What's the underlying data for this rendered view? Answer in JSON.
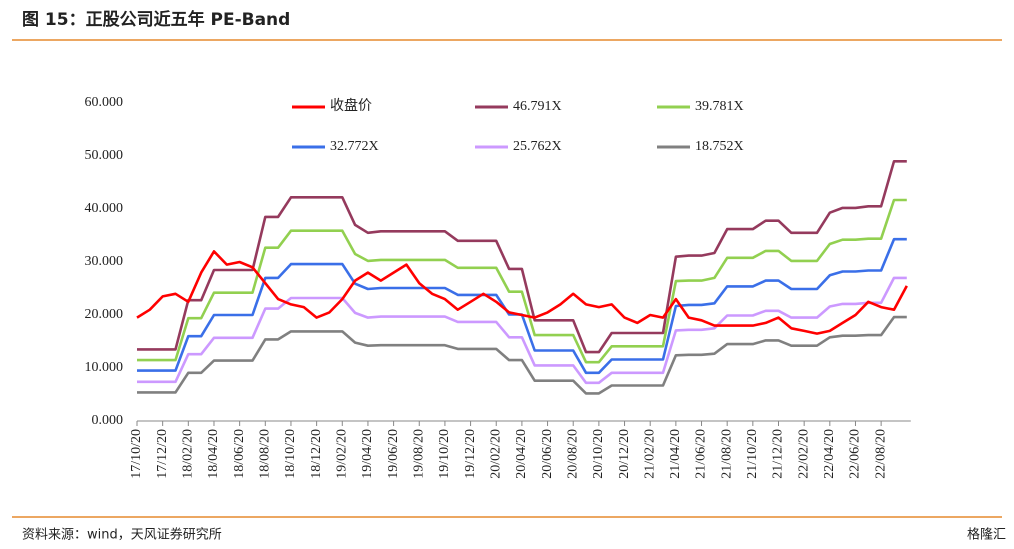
{
  "header": {
    "title": "图 15：正股公司近五年 PE-Band"
  },
  "chart_data": {
    "type": "line",
    "categories": [
      "17/10/20",
      null,
      "17/12/20",
      null,
      "18/02/20",
      null,
      "18/04/20",
      null,
      "18/06/20",
      null,
      "18/08/20",
      null,
      "18/10/20",
      null,
      "18/12/20",
      null,
      "19/02/20",
      null,
      "19/04/20",
      null,
      "19/06/20",
      null,
      "19/08/20",
      null,
      "19/10/20",
      null,
      "19/12/20",
      null,
      "20/02/20",
      null,
      "20/04/20",
      null,
      "20/06/20",
      null,
      "20/08/20",
      null,
      "20/10/20",
      null,
      "20/12/20",
      null,
      "21/02/20",
      null,
      "21/04/20",
      null,
      "21/06/20",
      null,
      "21/08/20",
      null,
      "21/10/20",
      null,
      "21/12/20",
      null,
      "22/02/20",
      null,
      "22/04/20",
      null,
      "22/06/20",
      null,
      "22/08/20",
      null,
      null
    ],
    "series": [
      {
        "name": "收盘价",
        "color": "#ff0000",
        "values": [
          19.5,
          21,
          23.5,
          24,
          22.5,
          28,
          32,
          29.5,
          30,
          29,
          26,
          23,
          22,
          21.5,
          19.5,
          20.5,
          23,
          26.5,
          28,
          26.5,
          28,
          29.5,
          26,
          24,
          23,
          21,
          22.5,
          24,
          22.5,
          20.5,
          20,
          19.5,
          20.5,
          22,
          24,
          22,
          21.5,
          22,
          19.5,
          18.5,
          20,
          19.5,
          23,
          19.5,
          19,
          18,
          18,
          18,
          18,
          18.5,
          19.5,
          17.5,
          17,
          16.5,
          17,
          18.5,
          20,
          22.5,
          21.5,
          21,
          25.5
        ]
      },
      {
        "name": "46.791X",
        "color": "#953a5d",
        "values": [
          13.5,
          13.5,
          13.5,
          13.5,
          22.8,
          22.8,
          28.5,
          28.5,
          28.5,
          28.5,
          38.5,
          38.5,
          42.2,
          42.2,
          42.2,
          42.2,
          42.2,
          37.0,
          35.5,
          35.8,
          35.8,
          35.8,
          35.8,
          35.8,
          35.8,
          34.0,
          34.0,
          34.0,
          34.0,
          28.7,
          28.7,
          19.0,
          19.0,
          19.0,
          19.0,
          13.0,
          13.0,
          16.6,
          16.6,
          16.6,
          16.6,
          16.6,
          31.0,
          31.2,
          31.2,
          31.7,
          36.2,
          36.2,
          36.2,
          37.8,
          37.8,
          35.5,
          35.5,
          35.5,
          39.3,
          40.2,
          40.2,
          40.5,
          40.5,
          49.0,
          49.0
        ]
      },
      {
        "name": "39.781X",
        "color": "#92d050",
        "values": [
          11.5,
          11.5,
          11.5,
          11.5,
          19.4,
          19.4,
          24.2,
          24.2,
          24.2,
          24.2,
          32.7,
          32.7,
          35.9,
          35.9,
          35.9,
          35.9,
          35.9,
          31.5,
          30.2,
          30.4,
          30.4,
          30.4,
          30.4,
          30.4,
          30.4,
          28.9,
          28.9,
          28.9,
          28.9,
          24.4,
          24.4,
          16.2,
          16.2,
          16.2,
          16.2,
          11.1,
          11.1,
          14.1,
          14.1,
          14.1,
          14.1,
          14.1,
          26.4,
          26.5,
          26.5,
          27.0,
          30.8,
          30.8,
          30.8,
          32.1,
          32.1,
          30.2,
          30.2,
          30.2,
          33.4,
          34.2,
          34.2,
          34.4,
          34.4,
          41.7,
          41.7
        ]
      },
      {
        "name": "32.772X",
        "color": "#3a6fe8",
        "values": [
          9.5,
          9.5,
          9.5,
          9.5,
          16.0,
          16.0,
          20.0,
          20.0,
          20.0,
          20.0,
          27.0,
          27.0,
          29.6,
          29.6,
          29.6,
          29.6,
          29.6,
          25.9,
          24.9,
          25.1,
          25.1,
          25.1,
          25.1,
          25.1,
          25.1,
          23.8,
          23.8,
          23.8,
          23.8,
          20.1,
          20.1,
          13.3,
          13.3,
          13.3,
          13.3,
          9.1,
          9.1,
          11.6,
          11.6,
          11.6,
          11.6,
          11.6,
          21.7,
          21.9,
          21.9,
          22.2,
          25.4,
          25.4,
          25.4,
          26.5,
          26.5,
          24.9,
          24.9,
          24.9,
          27.5,
          28.2,
          28.2,
          28.4,
          28.4,
          34.3,
          34.3
        ]
      },
      {
        "name": "25.762X",
        "color": "#cc99ff",
        "values": [
          7.4,
          7.4,
          7.4,
          7.4,
          12.6,
          12.6,
          15.7,
          15.7,
          15.7,
          15.7,
          21.2,
          21.2,
          23.2,
          23.2,
          23.2,
          23.2,
          23.2,
          20.4,
          19.5,
          19.7,
          19.7,
          19.7,
          19.7,
          19.7,
          19.7,
          18.7,
          18.7,
          18.7,
          18.7,
          15.8,
          15.8,
          10.5,
          10.5,
          10.5,
          10.5,
          7.2,
          7.2,
          9.1,
          9.1,
          9.1,
          9.1,
          9.1,
          17.1,
          17.2,
          17.2,
          17.5,
          19.9,
          19.9,
          19.9,
          20.8,
          20.8,
          19.5,
          19.5,
          19.5,
          21.6,
          22.1,
          22.1,
          22.3,
          22.3,
          27.0,
          27.0
        ]
      },
      {
        "name": "18.752X",
        "color": "#808080",
        "values": [
          5.4,
          5.4,
          5.4,
          5.4,
          9.1,
          9.1,
          11.4,
          11.4,
          11.4,
          11.4,
          15.4,
          15.4,
          16.9,
          16.9,
          16.9,
          16.9,
          16.9,
          14.8,
          14.2,
          14.3,
          14.3,
          14.3,
          14.3,
          14.3,
          14.3,
          13.6,
          13.6,
          13.6,
          13.6,
          11.5,
          11.5,
          7.6,
          7.6,
          7.6,
          7.6,
          5.2,
          5.2,
          6.7,
          6.7,
          6.7,
          6.7,
          6.7,
          12.4,
          12.5,
          12.5,
          12.7,
          14.5,
          14.5,
          14.5,
          15.2,
          15.2,
          14.2,
          14.2,
          14.2,
          15.8,
          16.1,
          16.1,
          16.2,
          16.2,
          19.6,
          19.6
        ]
      }
    ],
    "ylim": [
      0,
      60
    ],
    "yticks": [
      {
        "value": 0,
        "label": "0.000"
      },
      {
        "value": 10,
        "label": "10.000"
      },
      {
        "value": 20,
        "label": "20.000"
      },
      {
        "value": 30,
        "label": "30.000"
      },
      {
        "value": 40,
        "label": "40.000"
      },
      {
        "value": 50,
        "label": "50.000"
      },
      {
        "value": 60,
        "label": "60.000"
      }
    ],
    "legend": "top"
  },
  "footer": {
    "source": "资料来源：wind，天风证券研究所",
    "watermark": "格隆汇"
  }
}
